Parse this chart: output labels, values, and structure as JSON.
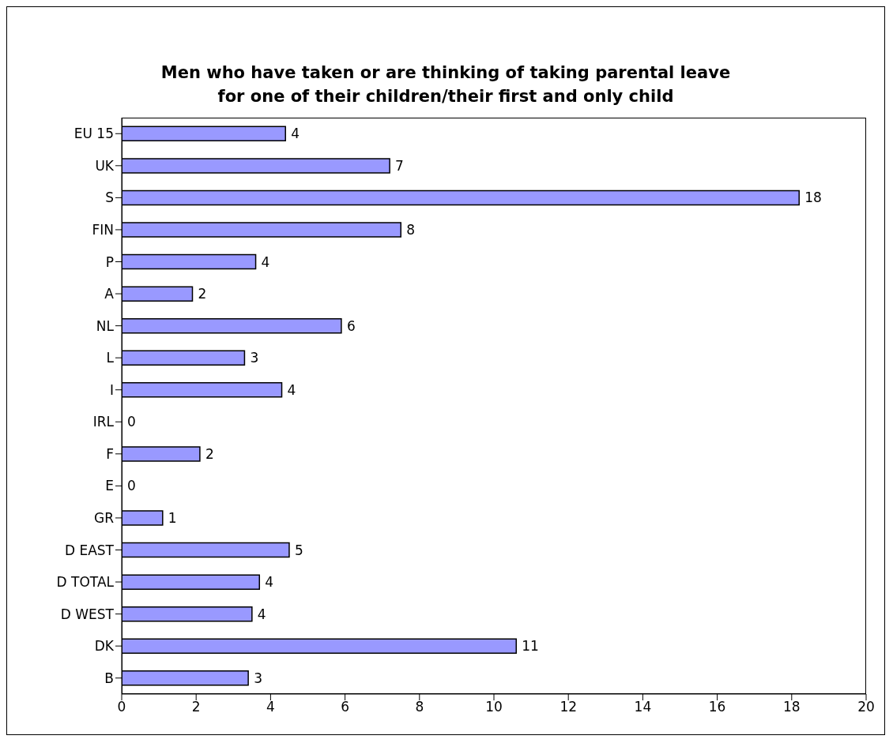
{
  "chart_data": {
    "type": "bar",
    "orientation": "horizontal",
    "title": "Men who have taken or are thinking of taking parental leave for one of their children/their first and only child",
    "categories": [
      "EU 15",
      "UK",
      "S",
      "FIN",
      "P",
      "A",
      "NL",
      "L",
      "I",
      "IRL",
      "F",
      "E",
      "GR",
      "D EAST",
      "D TOTAL",
      "D WEST",
      "DK",
      "B"
    ],
    "values": [
      4.4,
      7.2,
      18.2,
      7.5,
      3.6,
      1.9,
      5.9,
      3.3,
      4.3,
      0,
      2.1,
      0,
      1.1,
      4.5,
      3.7,
      3.5,
      10.6,
      3.4
    ],
    "value_labels": [
      "4",
      "7",
      "18",
      "8",
      "4",
      "2",
      "6",
      "3",
      "4",
      "0",
      "2",
      "0",
      "1",
      "5",
      "4",
      "4",
      "11",
      "3"
    ],
    "color": "#9999ff",
    "xlim": [
      0,
      20
    ],
    "xticks": [
      0,
      2,
      4,
      6,
      8,
      10,
      12,
      14,
      16,
      18,
      20
    ],
    "grid": false,
    "legend": false
  }
}
